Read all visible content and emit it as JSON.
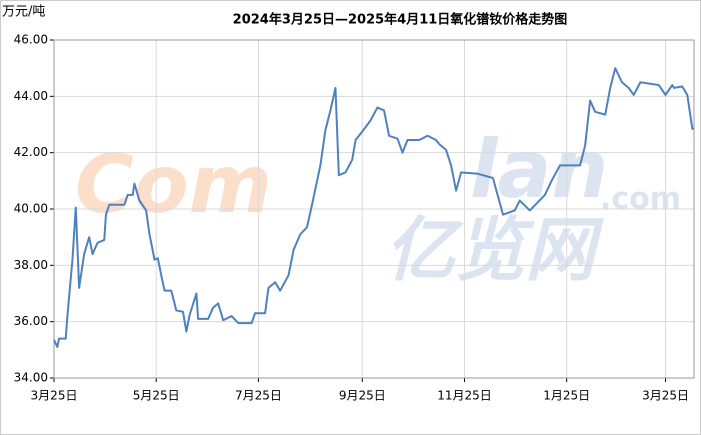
{
  "chart_data": {
    "type": "line",
    "title": "2024年3月25日—2025年4月11日氧化镨钕价格走势图",
    "y_axis_label": "万元/吨",
    "watermark": [
      "Com",
      "lan",
      ".com",
      "亿览网"
    ],
    "x": [
      0,
      2,
      3,
      7,
      8,
      11,
      13,
      15,
      18,
      21,
      23,
      26,
      30,
      31,
      33,
      42,
      44,
      47,
      48,
      51,
      55,
      57,
      60,
      62,
      64,
      66,
      70,
      73,
      77,
      79,
      81,
      85,
      86,
      92,
      95,
      98,
      101,
      106,
      110,
      118,
      120,
      126,
      128,
      132,
      135,
      140,
      143,
      147,
      151,
      154,
      159,
      162,
      165,
      168,
      170,
      174,
      178,
      180,
      184,
      189,
      193,
      197,
      200,
      205,
      208,
      211,
      218,
      223,
      228,
      230,
      234,
      237,
      240,
      243,
      253,
      262,
      268,
      275,
      278,
      284,
      293,
      297,
      302,
      314,
      317,
      320,
      323,
      329,
      332,
      335,
      339,
      343,
      346,
      350,
      361,
      365,
      369,
      370,
      375,
      378,
      381,
      382
    ],
    "series": [
      {
        "name": "氧化镨钕",
        "color": "#4f81bd",
        "values": [
          35.35,
          35.1,
          35.4,
          35.4,
          36.2,
          38.2,
          40.05,
          37.2,
          38.4,
          39.0,
          38.4,
          38.8,
          38.9,
          39.8,
          40.15,
          40.15,
          40.5,
          40.5,
          40.9,
          40.3,
          39.95,
          39.1,
          38.2,
          38.25,
          37.65,
          37.1,
          37.1,
          36.4,
          36.35,
          35.65,
          36.25,
          37.0,
          36.1,
          36.1,
          36.5,
          36.65,
          36.05,
          36.2,
          35.95,
          35.95,
          36.3,
          36.3,
          37.2,
          37.4,
          37.1,
          37.65,
          38.55,
          39.1,
          39.35,
          40.15,
          41.55,
          42.8,
          43.5,
          44.3,
          41.2,
          41.3,
          41.75,
          42.45,
          42.75,
          43.15,
          43.6,
          43.5,
          42.6,
          42.5,
          42.0,
          42.45,
          42.45,
          42.6,
          42.45,
          42.3,
          42.1,
          41.55,
          40.65,
          41.3,
          41.25,
          41.1,
          39.8,
          39.95,
          40.3,
          39.95,
          40.5,
          41.0,
          41.55,
          41.55,
          42.25,
          43.85,
          43.45,
          43.35,
          44.3,
          45.0,
          44.5,
          44.3,
          44.05,
          44.5,
          44.4,
          44.05,
          44.4,
          44.3,
          44.35,
          44.05,
          42.85,
          42.85
        ]
      }
    ],
    "xlim": [
      0,
      382
    ],
    "xticks": [
      {
        "value": 0,
        "label": "3月25日"
      },
      {
        "value": 61,
        "label": "5月25日"
      },
      {
        "value": 122,
        "label": "7月25日"
      },
      {
        "value": 184,
        "label": "9月25日"
      },
      {
        "value": 245,
        "label": "11月25日"
      },
      {
        "value": 306,
        "label": "1月25日"
      },
      {
        "value": 365,
        "label": "3月25日"
      }
    ],
    "ylim": [
      34,
      46
    ],
    "yticks": [
      {
        "value": 34,
        "label": "34.00"
      },
      {
        "value": 36,
        "label": "36.00"
      },
      {
        "value": 38,
        "label": "38.00"
      },
      {
        "value": 40,
        "label": "40.00"
      },
      {
        "value": 42,
        "label": "42.00"
      },
      {
        "value": 44,
        "label": "44.00"
      },
      {
        "value": 46,
        "label": "46.00"
      }
    ],
    "grid": true
  }
}
